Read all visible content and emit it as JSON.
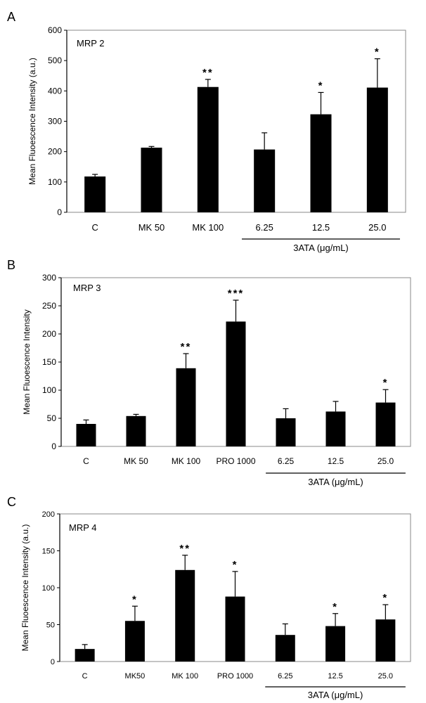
{
  "chart_data": [
    {
      "panel_label": "A",
      "type": "bar",
      "title": "MRP 2",
      "ylabel": "Mean Fluoescence Intensity  (a.u.)",
      "xlabel": "",
      "ylim": [
        0,
        600
      ],
      "yticks": [
        "0",
        "100",
        "200",
        "300",
        "400",
        "500",
        "600"
      ],
      "categories": [
        "C",
        "MK 50",
        "MK 100",
        "6.25",
        "12.5",
        "25.0"
      ],
      "values": [
        118,
        213,
        413,
        207,
        323,
        411
      ],
      "errors": [
        7,
        4,
        25,
        55,
        72,
        95
      ],
      "significance": [
        "",
        "",
        "**",
        "",
        "*",
        "*"
      ],
      "group_label": "3ATA (μg/mL)",
      "group_start": 3
    },
    {
      "panel_label": "B",
      "type": "bar",
      "title": "MRP 3",
      "ylabel": "Mean Fluoescence Intensity",
      "xlabel": "",
      "ylim": [
        0,
        300
      ],
      "yticks": [
        "0",
        "50",
        "100",
        "150",
        "200",
        "250",
        "300"
      ],
      "categories": [
        "C",
        "MK 50",
        "MK 100",
        "PRO 1000",
        "6.25",
        "12.5",
        "25.0"
      ],
      "values": [
        40,
        54,
        139,
        222,
        50,
        62,
        78
      ],
      "errors": [
        7,
        3,
        26,
        38,
        17,
        18,
        23
      ],
      "significance": [
        "",
        "",
        "**",
        "***",
        "",
        "",
        "*"
      ],
      "group_label": "3ATA (μg/mL)",
      "group_start": 4
    },
    {
      "panel_label": "C",
      "type": "bar",
      "title": "MRP 4",
      "ylabel": "Mean Fluoescence Intensity  (a.u.)",
      "xlabel": "",
      "ylim": [
        0,
        200
      ],
      "yticks": [
        "0",
        "50",
        "100",
        "150",
        "200"
      ],
      "categories": [
        "C",
        "MK50",
        "MK 100",
        "PRO 1000",
        "6.25",
        "12.5",
        "25.0"
      ],
      "values": [
        17,
        55,
        124,
        88,
        36,
        48,
        57
      ],
      "errors": [
        6,
        20,
        20,
        34,
        15,
        17,
        20
      ],
      "significance": [
        "",
        "*",
        "**",
        "*",
        "",
        "*",
        "*"
      ],
      "group_label": "3ATA (μg/mL)",
      "group_start": 4
    }
  ]
}
